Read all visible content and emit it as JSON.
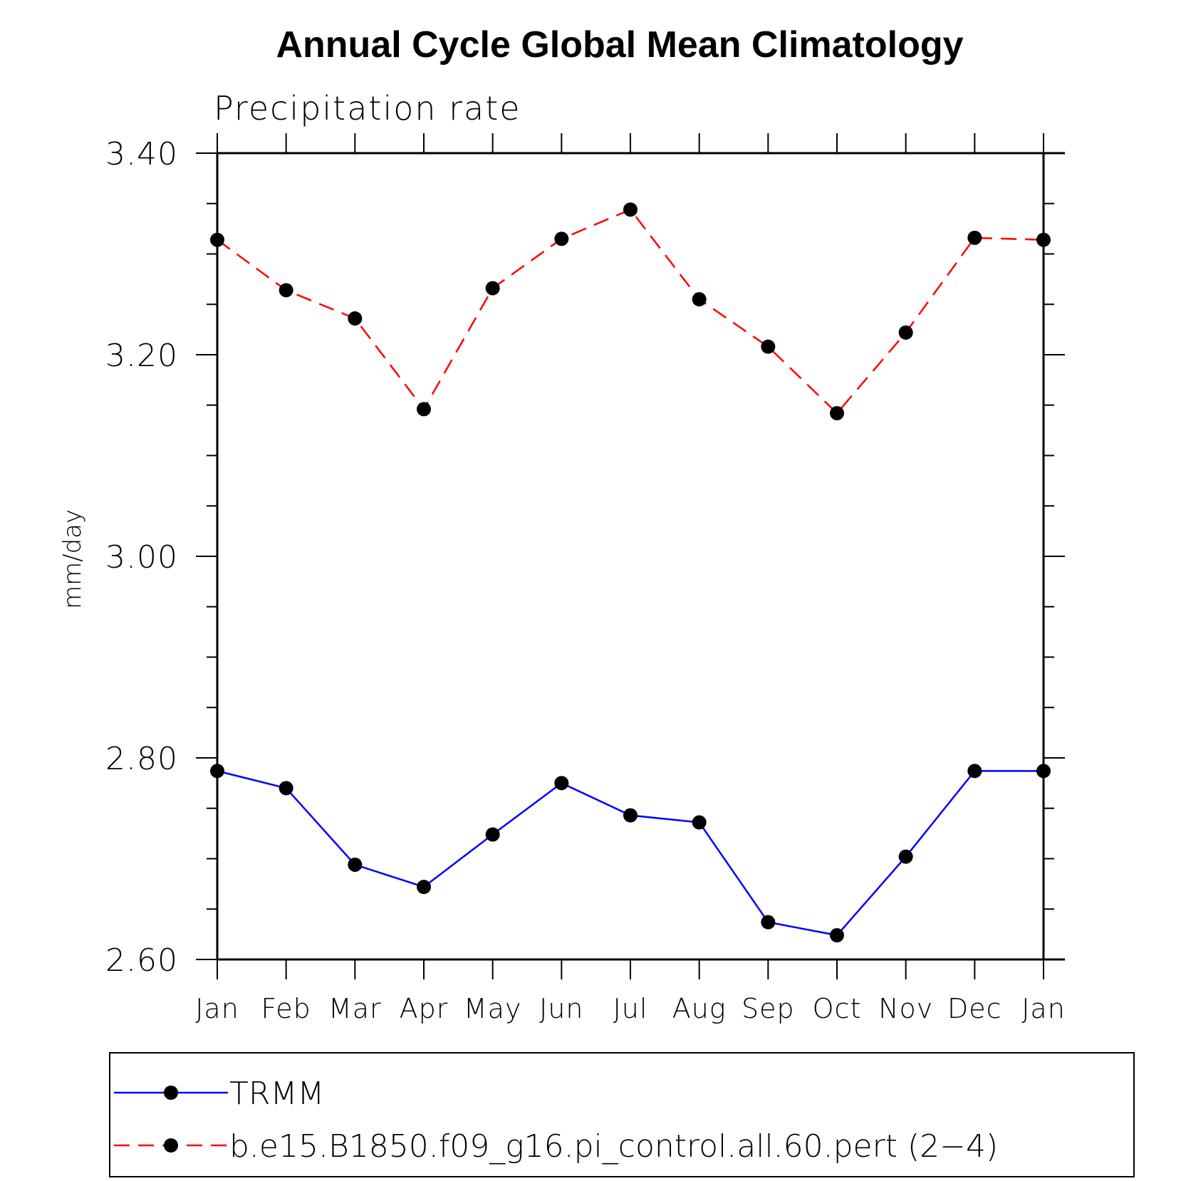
{
  "chart_data": {
    "type": "line",
    "title": "Annual Cycle Global Mean Climatology",
    "subtitle": "Precipitation rate",
    "xlabel": "",
    "ylabel": "mm/day",
    "categories": [
      "Jan",
      "Feb",
      "Mar",
      "Apr",
      "May",
      "Jun",
      "Jul",
      "Aug",
      "Sep",
      "Oct",
      "Nov",
      "Dec",
      "Jan"
    ],
    "ylim": [
      2.6,
      3.4
    ],
    "yticks": [
      "2.60",
      "2.80",
      "3.00",
      "3.20",
      "3.40"
    ],
    "ytick_values": [
      2.6,
      2.8,
      3.0,
      3.2,
      3.4
    ],
    "grid": false,
    "legend_position": "bottom",
    "series": [
      {
        "name": "TRMM",
        "color": "#0000ff",
        "style": "solid",
        "marker": "filled-circle",
        "values": [
          2.787,
          2.77,
          2.694,
          2.672,
          2.724,
          2.775,
          2.743,
          2.736,
          2.637,
          2.624,
          2.702,
          2.787,
          2.787
        ]
      },
      {
        "name": "b.e15.B1850.f09_g16.pi_control.all.60.pert (2−4)",
        "color": "#ff0000",
        "style": "dashed",
        "marker": "filled-circle",
        "values": [
          3.314,
          3.264,
          3.236,
          3.146,
          3.266,
          3.315,
          3.344,
          3.255,
          3.208,
          3.142,
          3.222,
          3.316,
          3.314
        ]
      }
    ]
  }
}
